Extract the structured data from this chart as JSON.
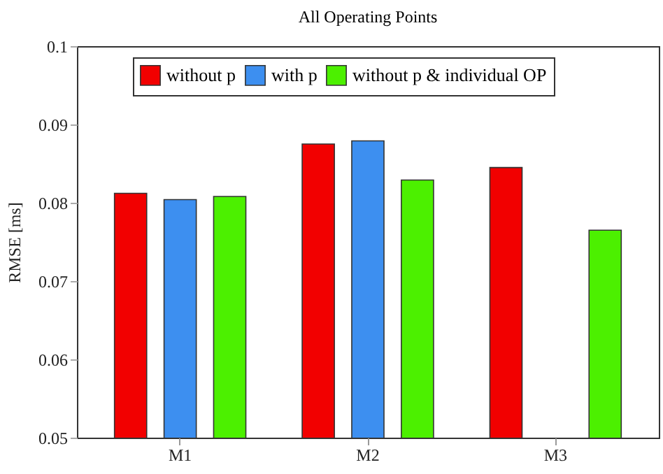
{
  "chart_data": {
    "type": "bar",
    "title": "All Operating Points",
    "ylabel": "RMSE [ms]",
    "categories": [
      "M1",
      "M2",
      "M3"
    ],
    "series": [
      {
        "name": "without p",
        "color": "#f20000",
        "values": [
          0.0812,
          0.0875,
          0.0845
        ]
      },
      {
        "name": "with p",
        "color": "#3d8ff0",
        "values": [
          0.0804,
          0.0879,
          null
        ]
      },
      {
        "name": "without p & individual OP",
        "color": "#4cf000",
        "values": [
          0.0808,
          0.0829,
          0.0765
        ]
      }
    ],
    "ylim": [
      0.05,
      0.1
    ],
    "yticks": [
      0.05,
      0.06,
      0.07,
      0.08,
      0.09,
      0.1
    ],
    "grid": false,
    "legend": "top right"
  }
}
